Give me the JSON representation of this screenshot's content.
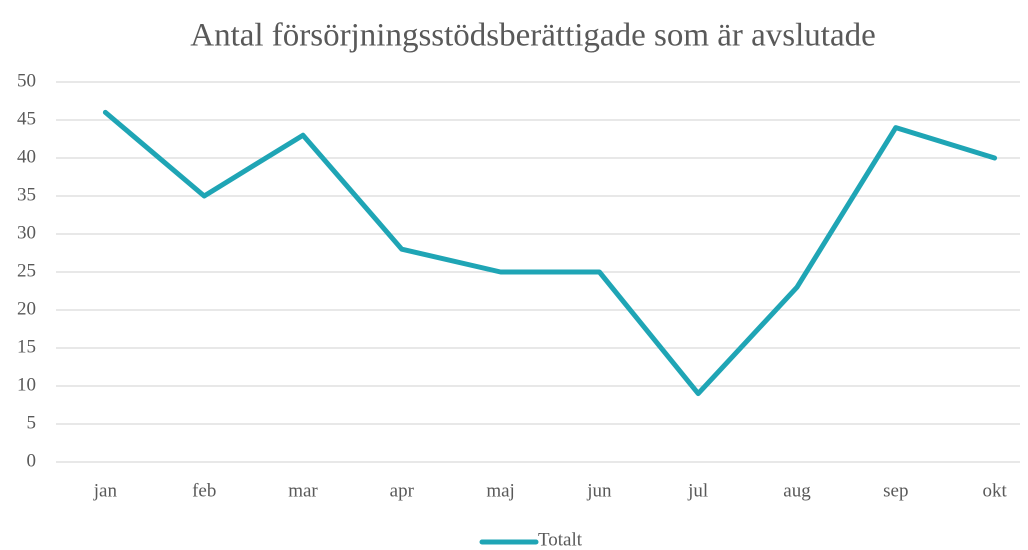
{
  "chart_data": {
    "type": "line",
    "title": "Antal försörjningsstödsberättigade som är avslutade",
    "categories": [
      "jan",
      "feb",
      "mar",
      "apr",
      "maj",
      "jun",
      "jul",
      "aug",
      "sep",
      "okt"
    ],
    "series": [
      {
        "name": "Totalt",
        "color": "#1fa5b5",
        "values": [
          46,
          35,
          43,
          28,
          25,
          25,
          9,
          23,
          44,
          40
        ]
      }
    ],
    "ylim": [
      0,
      50
    ],
    "yticks": [
      0,
      5,
      10,
      15,
      20,
      25,
      30,
      35,
      40,
      45,
      50
    ],
    "grid": true,
    "legend": "bottom"
  }
}
